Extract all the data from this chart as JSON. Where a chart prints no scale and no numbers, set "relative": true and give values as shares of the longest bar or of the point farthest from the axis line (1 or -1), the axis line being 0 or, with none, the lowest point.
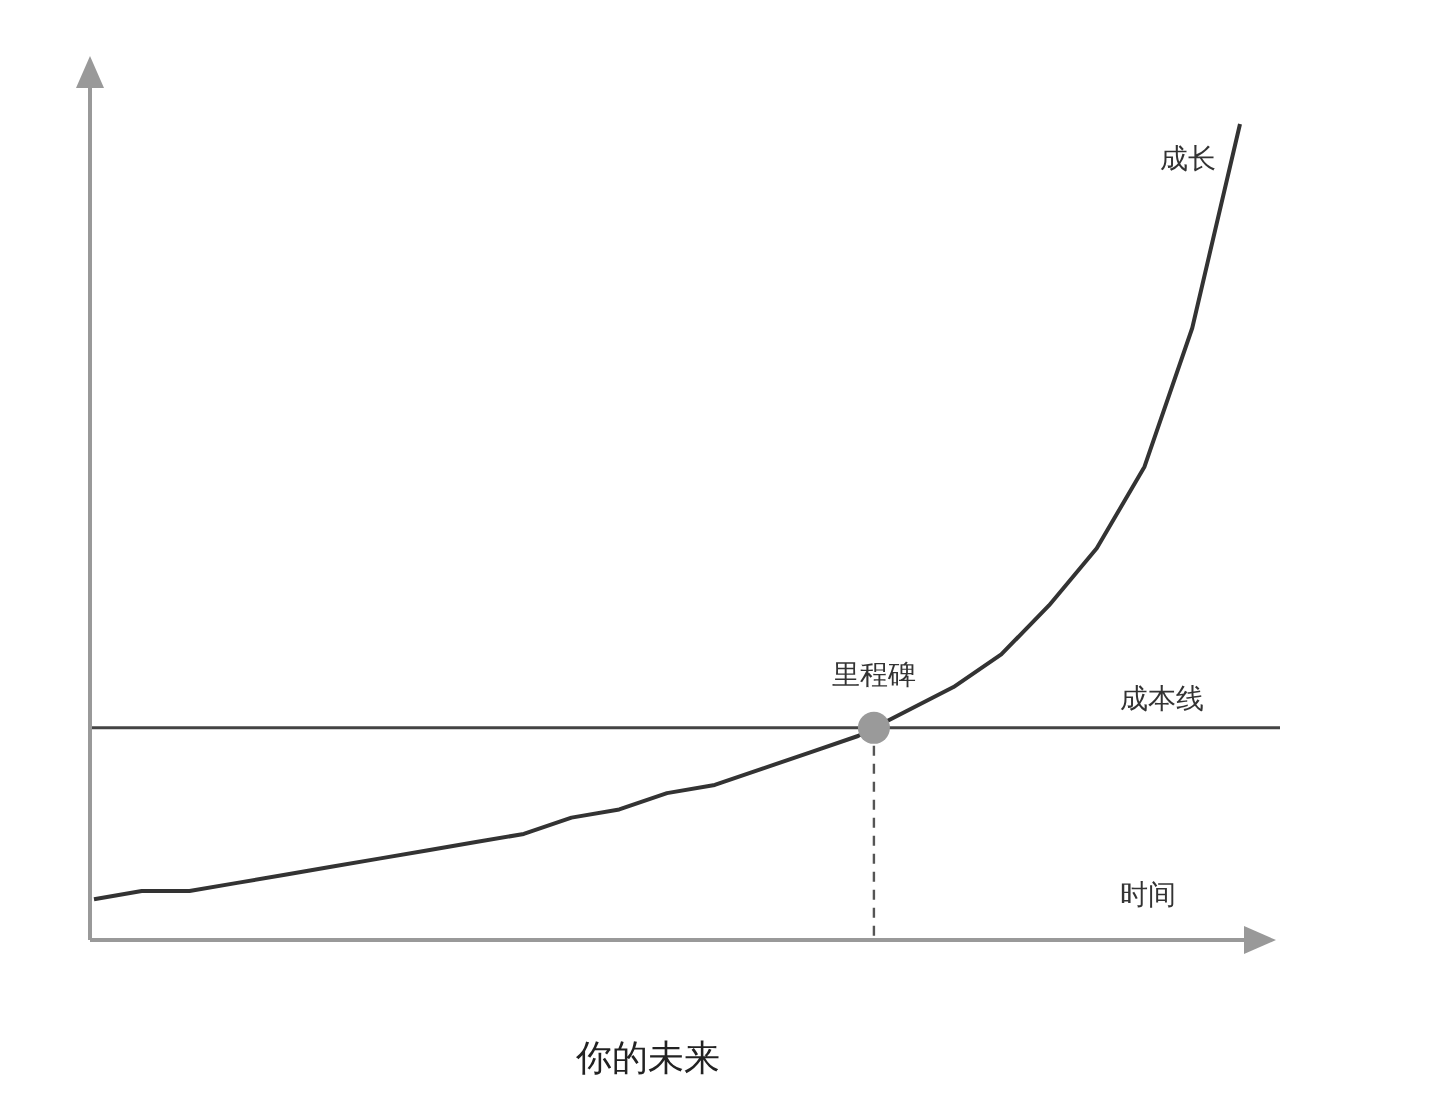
{
  "chart_data": {
    "type": "line",
    "title": "你的未来",
    "xlabel": "时间",
    "relative": true,
    "categories": [
      null,
      null,
      null,
      null,
      null,
      null,
      null,
      null,
      null,
      null,
      null,
      null,
      null,
      null,
      null,
      null,
      null,
      null,
      null,
      null,
      null,
      null,
      null,
      null,
      null
    ],
    "series": [
      {
        "name": "成长",
        "color": "#333333",
        "values": [
          0.05,
          0.06,
          0.06,
          0.07,
          0.08,
          0.09,
          0.1,
          0.11,
          0.12,
          0.13,
          0.15,
          0.16,
          0.18,
          0.19,
          0.21,
          0.23,
          0.25,
          0.28,
          0.31,
          0.35,
          0.41,
          0.48,
          0.58,
          0.75,
          1
        ]
      }
    ],
    "ref_lines": [
      {
        "axis": "y",
        "value": 0.26,
        "label": "成本线",
        "color": "#444444"
      }
    ],
    "annotations": [
      {
        "text": "里程碑",
        "y": 0.26
      }
    ]
  }
}
